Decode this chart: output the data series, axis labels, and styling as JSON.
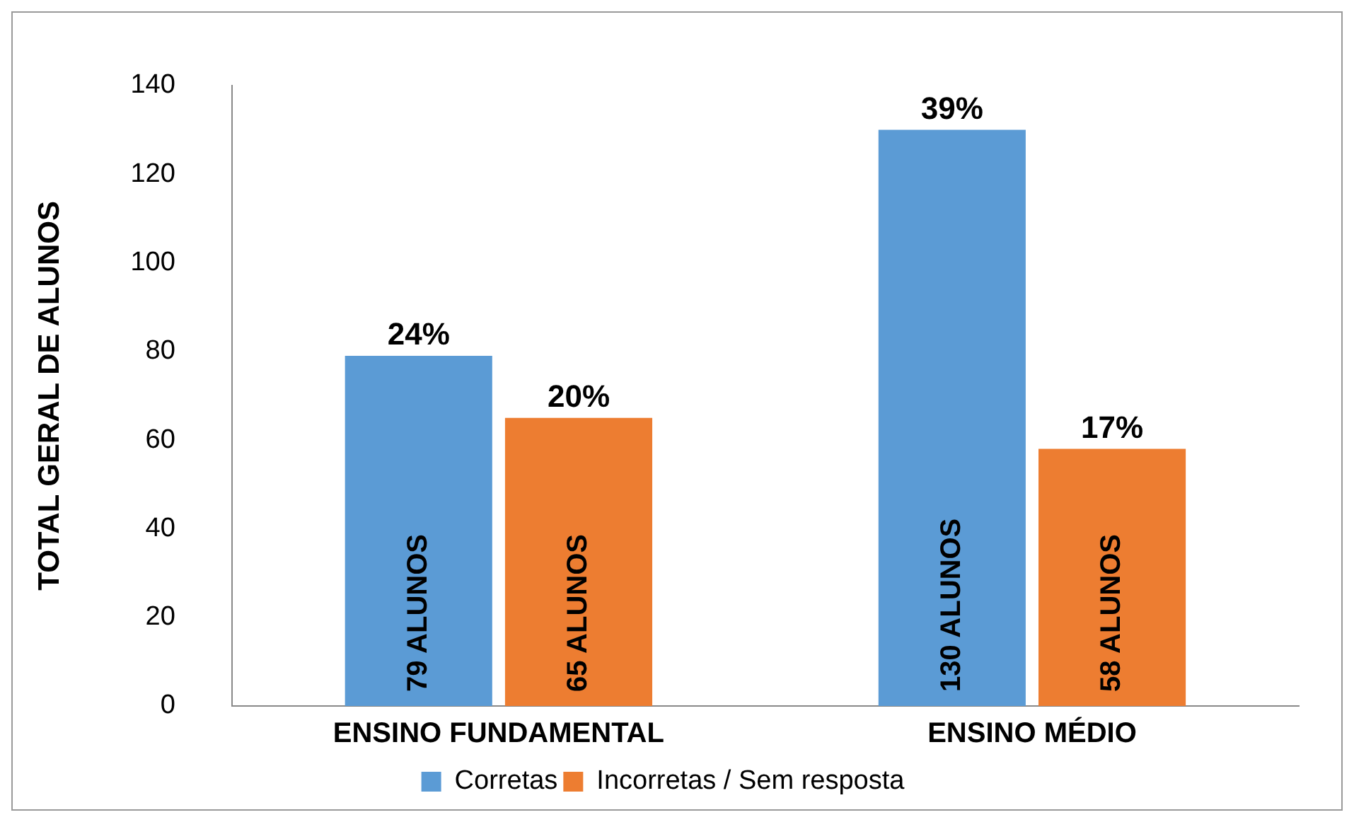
{
  "chart_data": {
    "type": "bar",
    "ylabel": "TOTAL GERAL DE ALUNOS",
    "categories": [
      "ENSINO FUNDAMENTAL",
      "ENSINO MÉDIO"
    ],
    "series": [
      {
        "name": "Corretas",
        "color": "#5b9bd5",
        "values": [
          79,
          130
        ],
        "value_labels": [
          "79 ALUNOS",
          "130 ALUNOS"
        ]
      },
      {
        "name": "Incorretas / Sem resposta",
        "color": "#ed7d31",
        "values": [
          65,
          58
        ],
        "value_labels": [
          "65 ALUNOS",
          "58 ALUNOS"
        ]
      }
    ],
    "annotations": [
      {
        "text": "24%",
        "x": "ENSINO FUNDAMENTAL",
        "y": 79
      },
      {
        "text": "20%",
        "x": "ENSINO FUNDAMENTAL",
        "y": 65
      },
      {
        "text": "39%",
        "x": "ENSINO MÉDIO",
        "y": 130
      },
      {
        "text": "17%",
        "x": "ENSINO MÉDIO",
        "y": 58
      }
    ],
    "ylim": [
      0,
      140
    ],
    "yticks": [
      0,
      20,
      40,
      60,
      80,
      100,
      120,
      140
    ],
    "grid": false,
    "legend": "bottom"
  }
}
